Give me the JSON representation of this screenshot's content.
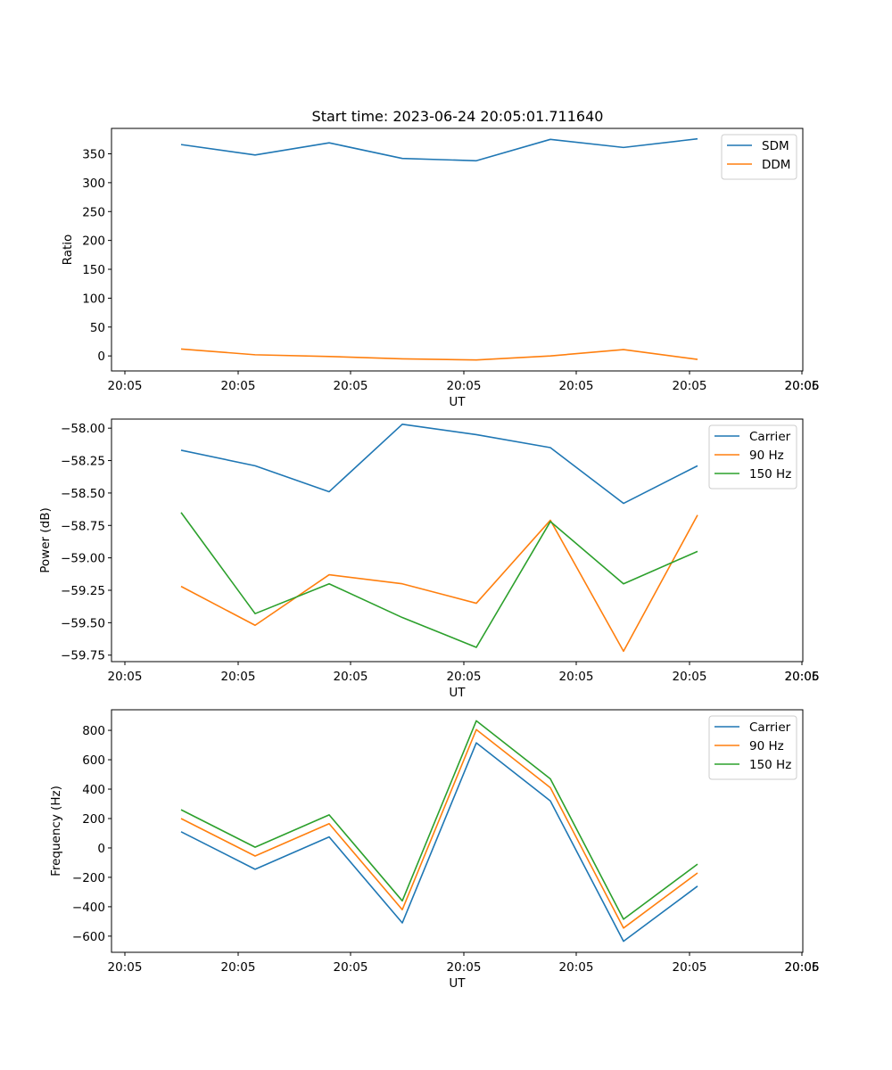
{
  "figure": {
    "title": "Start time: 2023-06-24 20:05:01.711640"
  },
  "chart_data": [
    {
      "type": "line",
      "xlabel": "UT",
      "ylabel": "Ratio",
      "x_tick_labels": [
        "20:05",
        "20:05",
        "20:05",
        "20:05",
        "20:05",
        "20:05",
        "20:05",
        "20:06"
      ],
      "ylim": [
        -26,
        394
      ],
      "y_ticks": [
        0,
        50,
        100,
        150,
        200,
        250,
        300,
        350
      ],
      "legend_loc": "top-right",
      "grid": false,
      "series": [
        {
          "name": "SDM",
          "color": "#1f77b4",
          "values": [
            366,
            348,
            369,
            342,
            338,
            375,
            361,
            376
          ]
        },
        {
          "name": "DDM",
          "color": "#ff7f0e",
          "values": [
            12,
            2,
            -1,
            -5,
            -7,
            0,
            11,
            -6
          ]
        }
      ]
    },
    {
      "type": "line",
      "xlabel": "UT",
      "ylabel": "Power (dB)",
      "x_tick_labels": [
        "20:05",
        "20:05",
        "20:05",
        "20:05",
        "20:05",
        "20:05",
        "20:05",
        "20:06"
      ],
      "ylim": [
        -59.8,
        -57.93
      ],
      "y_ticks": [
        -59.75,
        -59.5,
        -59.25,
        -59.0,
        -58.75,
        -58.5,
        -58.25,
        -58.0
      ],
      "y_tick_labels": [
        "−59.75",
        "−59.50",
        "−59.25",
        "−59.00",
        "−58.75",
        "−58.50",
        "−58.25",
        "−58.00"
      ],
      "legend_loc": "top-right",
      "grid": false,
      "series": [
        {
          "name": "Carrier",
          "color": "#1f77b4",
          "values": [
            -58.17,
            -58.29,
            -58.49,
            -57.97,
            -58.05,
            -58.15,
            -58.58,
            -58.29
          ]
        },
        {
          "name": "90 Hz",
          "color": "#ff7f0e",
          "values": [
            -59.22,
            -59.52,
            -59.13,
            -59.2,
            -59.35,
            -58.71,
            -59.72,
            -58.67
          ]
        },
        {
          "name": "150 Hz",
          "color": "#2ca02c",
          "values": [
            -58.65,
            -59.43,
            -59.2,
            -59.46,
            -59.69,
            -58.72,
            -59.2,
            -58.95
          ]
        }
      ]
    },
    {
      "type": "line",
      "xlabel": "UT",
      "ylabel": "Frequency (Hz)",
      "x_tick_labels": [
        "20:05",
        "20:05",
        "20:05",
        "20:05",
        "20:05",
        "20:05",
        "20:05",
        "20:06"
      ],
      "ylim": [
        -710,
        940
      ],
      "y_ticks": [
        -600,
        -400,
        -200,
        0,
        200,
        400,
        600,
        800
      ],
      "y_tick_labels": [
        "−600",
        "−400",
        "−200",
        "0",
        "200",
        "400",
        "600",
        "800"
      ],
      "legend_loc": "top-right",
      "grid": false,
      "series": [
        {
          "name": "Carrier",
          "color": "#1f77b4",
          "values": [
            110,
            -145,
            75,
            -510,
            715,
            320,
            -635,
            -260
          ]
        },
        {
          "name": "90 Hz",
          "color": "#ff7f0e",
          "values": [
            200,
            -55,
            165,
            -420,
            805,
            410,
            -545,
            -170
          ]
        },
        {
          "name": "150 Hz",
          "color": "#2ca02c",
          "values": [
            260,
            5,
            225,
            -360,
            865,
            470,
            -485,
            -110
          ]
        }
      ]
    }
  ]
}
